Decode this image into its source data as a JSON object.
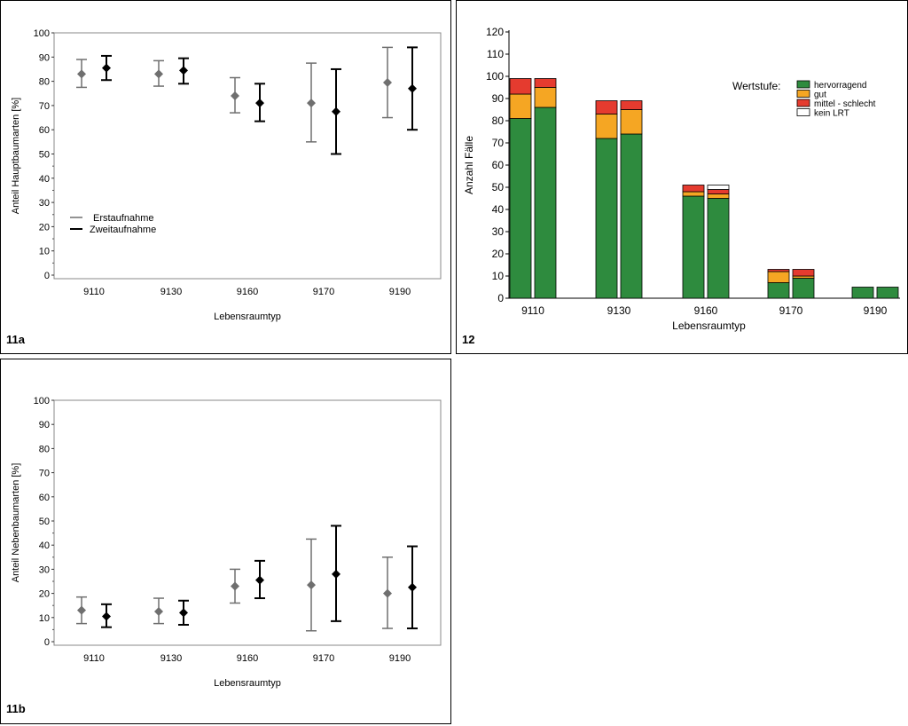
{
  "panels": {
    "a": "11a",
    "b": "11b",
    "c": "12"
  },
  "colors": {
    "erst": "#6f6f6f",
    "zweit": "#000000",
    "hervorragend": "#2e8b3e",
    "gut": "#f5a623",
    "mittel_schlecht": "#e53b2f",
    "kein_lrt": "#ffffff"
  },
  "chart_data": [
    {
      "id": "11a",
      "type": "scatter",
      "categories": [
        "9110",
        "9130",
        "9160",
        "9170",
        "9190"
      ],
      "xlabel": "Lebensraumtyp",
      "ylabel": "Anteil Hauptbaumarten [%]",
      "ylim": [
        0,
        100
      ],
      "yticks": [
        0,
        10,
        20,
        30,
        40,
        50,
        60,
        70,
        80,
        90,
        100
      ],
      "legend_position": "lower-left",
      "series": [
        {
          "name": "Erstaufnahme",
          "values": [
            83,
            83,
            74,
            71,
            79.5
          ],
          "lower": [
            77.5,
            78,
            67,
            55,
            65
          ],
          "upper": [
            89,
            88.5,
            81.5,
            87.5,
            94
          ]
        },
        {
          "name": "Zweitaufnahme",
          "values": [
            85.5,
            84.5,
            71,
            67.5,
            77
          ],
          "lower": [
            80.5,
            79,
            63.5,
            50,
            60
          ],
          "upper": [
            90.5,
            89.5,
            79,
            85,
            94
          ]
        }
      ]
    },
    {
      "id": "11b",
      "type": "scatter",
      "categories": [
        "9110",
        "9130",
        "9160",
        "9170",
        "9190"
      ],
      "xlabel": "Lebensraumtyp",
      "ylabel": "Anteil Nebenbaumarten [%]",
      "ylim": [
        0,
        100
      ],
      "yticks": [
        0,
        10,
        20,
        30,
        40,
        50,
        60,
        70,
        80,
        90,
        100
      ],
      "series": [
        {
          "name": "Erstaufnahme",
          "values": [
            13,
            12.5,
            23,
            23.5,
            20
          ],
          "lower": [
            7.5,
            7.5,
            16,
            4.5,
            5.5
          ],
          "upper": [
            18.5,
            18,
            30,
            42.5,
            35
          ]
        },
        {
          "name": "Zweitaufnahme",
          "values": [
            10.5,
            12,
            25.5,
            28,
            22.5
          ],
          "lower": [
            6,
            7,
            18,
            8.5,
            5.5
          ],
          "upper": [
            15.5,
            17,
            33.5,
            48,
            39.5
          ]
        }
      ]
    },
    {
      "id": "12",
      "type": "bar",
      "stacked": true,
      "categories": [
        "9110",
        "9130",
        "9160",
        "9170",
        "9190"
      ],
      "xlabel": "Lebensraumtyp",
      "ylabel": "Anzahl Fälle",
      "ylim": [
        0,
        120
      ],
      "yticks": [
        0,
        10,
        20,
        30,
        40,
        50,
        60,
        70,
        80,
        90,
        100,
        110,
        120
      ],
      "legend_title": "Wertstufe:",
      "legend_position": "top-right",
      "bars_per_category": 2,
      "series": [
        {
          "name": "hervorragend",
          "values": [
            [
              81,
              86
            ],
            [
              72,
              74
            ],
            [
              46,
              45
            ],
            [
              7,
              9
            ],
            [
              5,
              5
            ]
          ]
        },
        {
          "name": "gut",
          "values": [
            [
              11,
              9
            ],
            [
              11,
              11
            ],
            [
              2,
              2
            ],
            [
              5,
              1
            ],
            [
              0,
              0
            ]
          ]
        },
        {
          "name": "mittel - schlecht",
          "values": [
            [
              7,
              4
            ],
            [
              6,
              4
            ],
            [
              3,
              2
            ],
            [
              1,
              3
            ],
            [
              0,
              0
            ]
          ]
        },
        {
          "name": "kein LRT",
          "values": [
            [
              0,
              0
            ],
            [
              0,
              0
            ],
            [
              0,
              2
            ],
            [
              0,
              0
            ],
            [
              0,
              0
            ]
          ]
        }
      ]
    }
  ]
}
